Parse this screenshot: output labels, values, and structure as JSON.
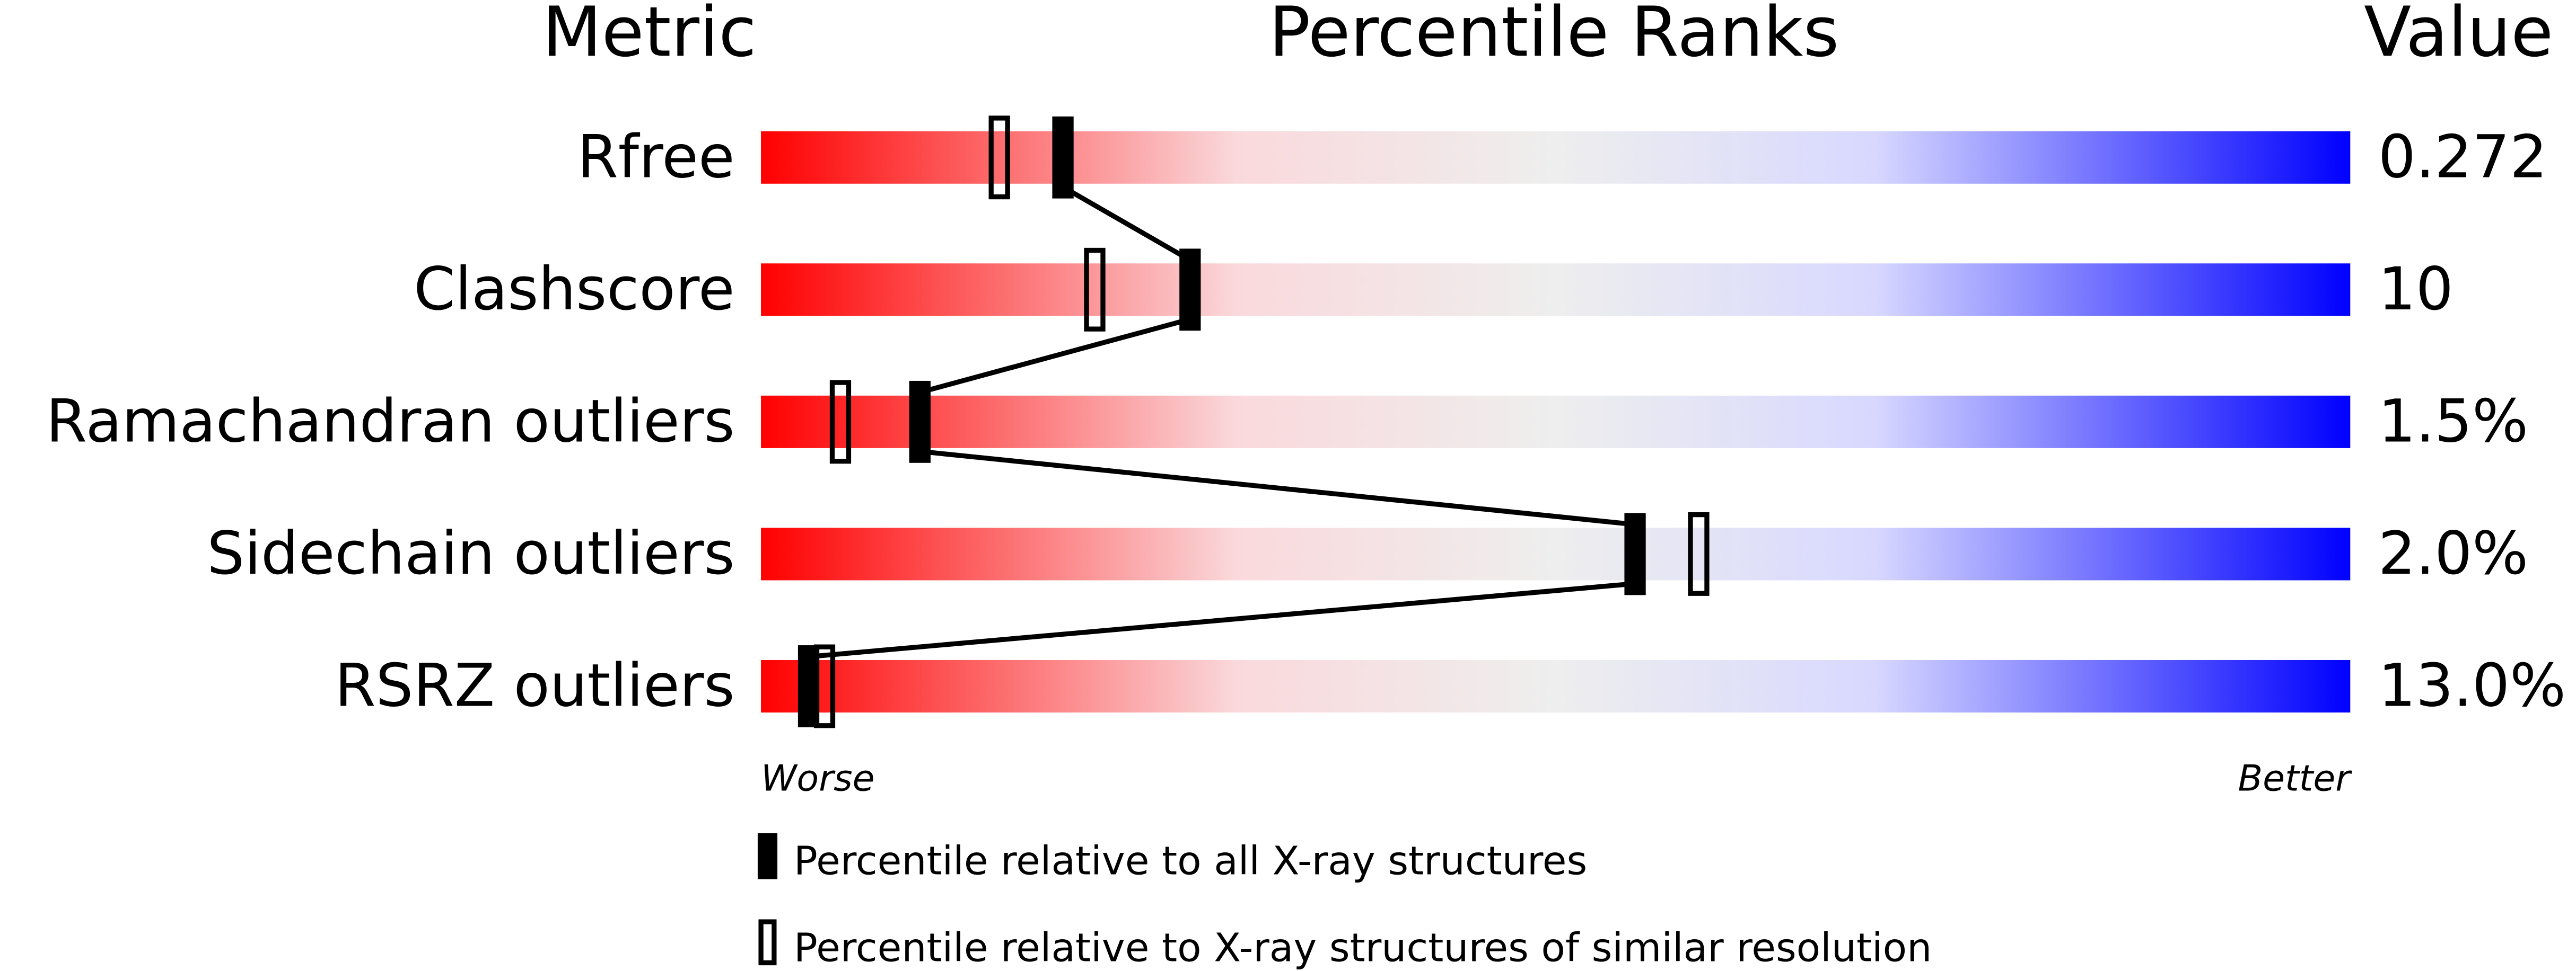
{
  "chart_data": {
    "type": "percentile-slider",
    "headers": {
      "metric": "Metric",
      "ranks": "Percentile Ranks",
      "value": "Value"
    },
    "axis": {
      "left": "Worse",
      "right": "Better",
      "range": [
        0,
        100
      ]
    },
    "gradient_colors": [
      "#ff0000",
      "#fad9dc",
      "#eeeeee",
      "#d8d8ff",
      "#0000ff"
    ],
    "metrics": [
      {
        "name": "Rfree",
        "value": "0.272",
        "percentile_all": 19,
        "percentile_similar": 15
      },
      {
        "name": "Clashscore",
        "value": "10",
        "percentile_all": 27,
        "percentile_similar": 21
      },
      {
        "name": "Ramachandran outliers",
        "value": "1.5%",
        "percentile_all": 10,
        "percentile_similar": 5
      },
      {
        "name": "Sidechain outliers",
        "value": "2.0%",
        "percentile_all": 55,
        "percentile_similar": 59
      },
      {
        "name": "RSRZ outliers",
        "value": "13.0%",
        "percentile_all": 3,
        "percentile_similar": 4
      }
    ],
    "legend": [
      {
        "marker": "filled",
        "label": "Percentile relative to all X-ray structures"
      },
      {
        "marker": "open",
        "label": "Percentile relative to X-ray structures of similar resolution"
      }
    ]
  }
}
